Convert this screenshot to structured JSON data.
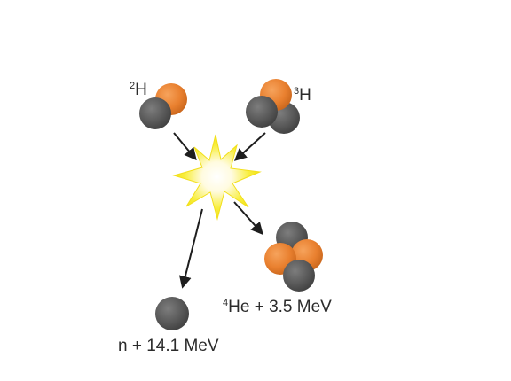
{
  "labels": {
    "deuterium": {
      "mass": "2",
      "symbol": "H"
    },
    "tritium": {
      "mass": "3",
      "symbol": "H"
    },
    "helium": {
      "mass": "4",
      "symbol": "He",
      "energy": " + 3.5 MeV"
    },
    "neutron": {
      "text": "n + 14.1 MeV"
    }
  },
  "colors": {
    "proton": "#e9802f",
    "neutron": "#5a5a5a",
    "arrow": "#1e1e1e",
    "flash_outer": "#f6ea1f",
    "flash_inner": "#ffffff",
    "text": "#2b2b2b"
  }
}
